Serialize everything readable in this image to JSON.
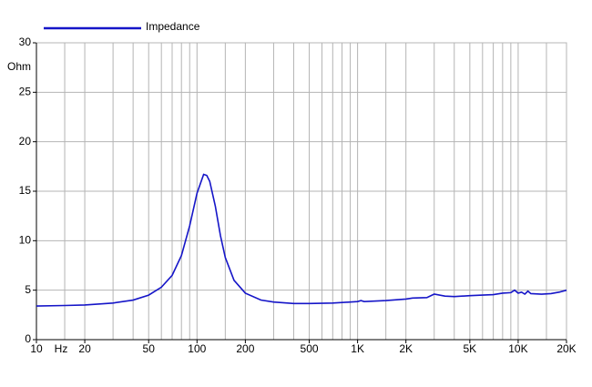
{
  "chart_data": {
    "type": "line",
    "x_scale": "log",
    "x_unit": "Hz",
    "y_unit": "Ohm",
    "xlim": [
      10,
      20000
    ],
    "ylim": [
      0,
      30
    ],
    "yticks": [
      0,
      5,
      10,
      15,
      20,
      25,
      30
    ],
    "xticks": [
      10,
      20,
      50,
      100,
      200,
      500,
      {
        "value": 1000,
        "label": "1K"
      },
      {
        "value": 2000,
        "label": "2K"
      },
      {
        "value": 5000,
        "label": "5K"
      },
      {
        "value": 10000,
        "label": "10K"
      },
      {
        "value": 20000,
        "label": "20K"
      }
    ],
    "xgrid": [
      15,
      20,
      30,
      40,
      50,
      60,
      70,
      80,
      90,
      100,
      150,
      200,
      300,
      400,
      500,
      600,
      700,
      800,
      900,
      1000,
      1500,
      2000,
      3000,
      4000,
      5000,
      6000,
      7000,
      8000,
      9000,
      10000,
      15000
    ],
    "grid": true,
    "x": [
      10,
      15,
      20,
      30,
      40,
      50,
      60,
      70,
      80,
      90,
      100,
      110,
      115,
      120,
      130,
      140,
      150,
      170,
      200,
      250,
      300,
      400,
      500,
      700,
      900,
      1000,
      1050,
      1100,
      1500,
      2000,
      2200,
      2700,
      3000,
      3500,
      4000,
      5000,
      6000,
      7000,
      8000,
      9000,
      9500,
      10000,
      10500,
      11000,
      11500,
      12000,
      14000,
      16000,
      18000,
      20000
    ],
    "series": [
      {
        "name": "Impedance",
        "color": "#1515c8",
        "values": [
          3.4,
          3.45,
          3.5,
          3.7,
          4.0,
          4.5,
          5.3,
          6.5,
          8.5,
          11.5,
          14.8,
          16.7,
          16.6,
          16.0,
          13.5,
          10.5,
          8.3,
          6.0,
          4.7,
          4.0,
          3.8,
          3.65,
          3.65,
          3.7,
          3.8,
          3.85,
          3.95,
          3.85,
          3.95,
          4.1,
          4.2,
          4.25,
          4.6,
          4.4,
          4.35,
          4.45,
          4.5,
          4.55,
          4.7,
          4.75,
          5.0,
          4.7,
          4.8,
          4.6,
          4.9,
          4.65,
          4.6,
          4.65,
          4.8,
          5.0
        ]
      }
    ]
  }
}
